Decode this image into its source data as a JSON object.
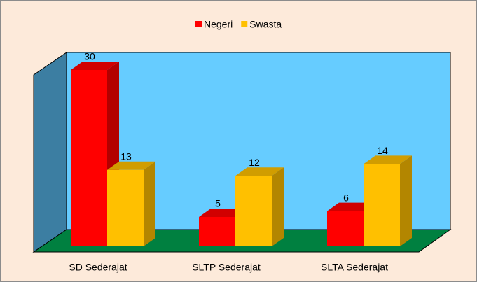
{
  "chart_data": {
    "type": "bar3d",
    "categories": [
      "SD Sederajat",
      "SLTP Sederajat",
      "SLTA Sederajat"
    ],
    "series": [
      {
        "name": "Negeri",
        "color": "#ff0000",
        "values": [
          30,
          5,
          6
        ]
      },
      {
        "name": "Swasta",
        "color": "#ffc000",
        "values": [
          13,
          12,
          14
        ]
      }
    ],
    "ylim": [
      0,
      30
    ],
    "legend": "top"
  }
}
